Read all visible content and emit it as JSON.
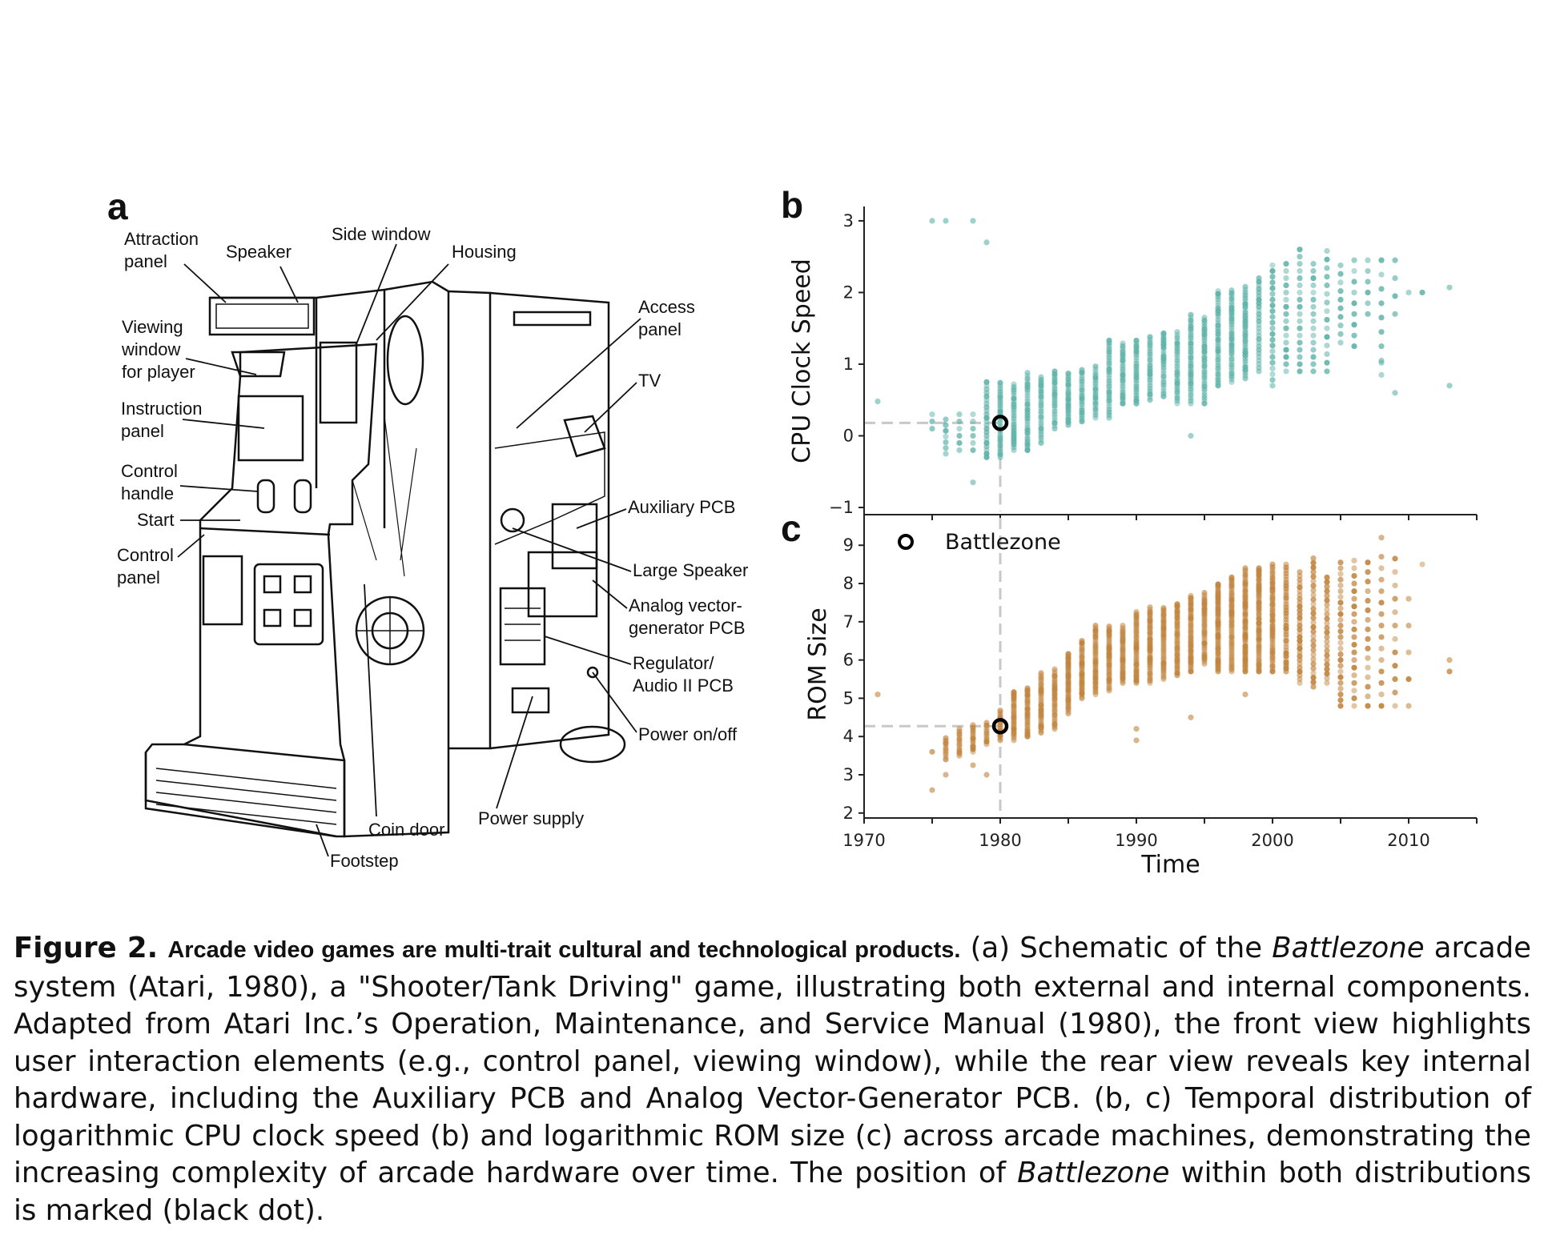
{
  "panel_a": {
    "label": "a",
    "callouts": {
      "attraction_panel": [
        "Attraction",
        "panel"
      ],
      "speaker": "Speaker",
      "side_window": "Side window",
      "housing": "Housing",
      "viewing_window": [
        "Viewing",
        "window",
        "for player"
      ],
      "instruction_panel": [
        "Instruction",
        "panel"
      ],
      "control_handle": [
        "Control",
        "handle"
      ],
      "start": "Start",
      "control_panel": [
        "Control",
        "panel"
      ],
      "access_panel": [
        "Access",
        "panel"
      ],
      "tv": "TV",
      "auxiliary_pcb": "Auxiliary PCB",
      "large_speaker": "Large Speaker",
      "analog_vector": [
        "Analog vector-",
        "generator PCB"
      ],
      "regulator": [
        "Regulator/",
        "Audio II PCB"
      ],
      "power_onoff": "Power on/off",
      "power_supply": "Power supply",
      "coin_door": "Coin door",
      "footstep": "Footstep"
    }
  },
  "chart_data": [
    {
      "panel": "b",
      "type": "scatter",
      "xlabel": "Time",
      "ylabel": "CPU Clock Speed",
      "xlim": [
        1970,
        2015
      ],
      "ylim": [
        -1.1,
        3.2
      ],
      "yticks": [
        "3",
        "2",
        "1",
        "0",
        "−1"
      ],
      "ytick_values": [
        3,
        2,
        1,
        0,
        -1
      ],
      "color": "#5fb3a9",
      "columns_note": "year, min, max, step",
      "columns": [
        [
          1975,
          0.1,
          0.3,
          0.1
        ],
        [
          1976,
          -0.25,
          0.3,
          0.08
        ],
        [
          1977,
          -0.2,
          0.3,
          0.1
        ],
        [
          1978,
          -0.2,
          0.3,
          0.1
        ],
        [
          1979,
          -0.3,
          0.75,
          0.05
        ],
        [
          1980,
          -0.3,
          0.75,
          0.04
        ],
        [
          1981,
          -0.2,
          0.75,
          0.04
        ],
        [
          1982,
          -0.2,
          0.9,
          0.04
        ],
        [
          1983,
          -0.1,
          0.85,
          0.04
        ],
        [
          1984,
          0.1,
          0.9,
          0.04
        ],
        [
          1985,
          0.15,
          0.9,
          0.04
        ],
        [
          1986,
          0.2,
          0.95,
          0.04
        ],
        [
          1987,
          0.25,
          1.0,
          0.04
        ],
        [
          1988,
          0.25,
          1.35,
          0.04
        ],
        [
          1989,
          0.45,
          1.3,
          0.04
        ],
        [
          1990,
          0.45,
          1.35,
          0.04
        ],
        [
          1991,
          0.5,
          1.4,
          0.04
        ],
        [
          1992,
          0.55,
          1.45,
          0.04
        ],
        [
          1993,
          0.45,
          1.45,
          0.04
        ],
        [
          1994,
          0.45,
          1.7,
          0.04
        ],
        [
          1995,
          0.45,
          1.65,
          0.04
        ],
        [
          1996,
          0.7,
          2.05,
          0.04
        ],
        [
          1997,
          0.75,
          2.05,
          0.04
        ],
        [
          1998,
          0.8,
          2.1,
          0.04
        ],
        [
          1999,
          0.9,
          2.2,
          0.05
        ],
        [
          2000,
          0.7,
          2.45,
          0.08
        ],
        [
          2001,
          0.9,
          2.45,
          0.1
        ],
        [
          2002,
          0.9,
          2.6,
          0.1
        ],
        [
          2003,
          0.9,
          2.45,
          0.1
        ],
        [
          2004,
          0.9,
          2.6,
          0.12
        ],
        [
          2005,
          1.3,
          2.45,
          0.12
        ],
        [
          2006,
          1.25,
          2.45,
          0.15
        ],
        [
          2007,
          1.7,
          2.45,
          0.15
        ],
        [
          2008,
          0.85,
          2.45,
          0.2
        ],
        [
          2009,
          1.7,
          2.45,
          0.25
        ],
        [
          2010,
          2.0,
          2.0,
          1
        ],
        [
          2011,
          2.0,
          2.0,
          1
        ]
      ],
      "outliers": [
        [
          1971,
          0.48
        ],
        [
          1975,
          3.0
        ],
        [
          1976,
          3.0
        ],
        [
          1978,
          3.0
        ],
        [
          1979,
          2.7
        ],
        [
          1978,
          -0.65
        ],
        [
          1994,
          0.0
        ],
        [
          2009,
          0.6
        ],
        [
          2013,
          0.7
        ],
        [
          2013,
          2.07
        ],
        [
          2008,
          1.02
        ]
      ],
      "highlight": {
        "name": "Battlezone",
        "x": 1980,
        "y": 0.18
      }
    },
    {
      "panel": "c",
      "type": "scatter",
      "xlabel": "Time",
      "ylabel": "ROM Size",
      "xlim": [
        1970,
        2015
      ],
      "ylim": [
        1.87,
        9.8
      ],
      "xticks": [
        "1970",
        "1980",
        "1990",
        "2000",
        "2010"
      ],
      "xtick_values": [
        1970,
        1980,
        1990,
        2000,
        2010
      ],
      "yticks": [
        "9",
        "8",
        "7",
        "6",
        "5",
        "4",
        "3",
        "2"
      ],
      "ytick_values": [
        9,
        8,
        7,
        6,
        5,
        4,
        3,
        2
      ],
      "color": "#c0843e",
      "columns": [
        [
          1975,
          3.6,
          3.6,
          1
        ],
        [
          1976,
          3.4,
          4.0,
          0.07
        ],
        [
          1977,
          3.5,
          4.2,
          0.07
        ],
        [
          1978,
          3.6,
          4.3,
          0.07
        ],
        [
          1979,
          3.8,
          4.4,
          0.07
        ],
        [
          1980,
          3.9,
          4.7,
          0.06
        ],
        [
          1981,
          3.9,
          5.2,
          0.06
        ],
        [
          1982,
          4.0,
          5.3,
          0.06
        ],
        [
          1983,
          4.1,
          5.7,
          0.06
        ],
        [
          1984,
          4.2,
          5.8,
          0.06
        ],
        [
          1985,
          4.6,
          6.2,
          0.06
        ],
        [
          1986,
          5.0,
          6.5,
          0.06
        ],
        [
          1987,
          5.1,
          6.9,
          0.06
        ],
        [
          1988,
          5.2,
          6.9,
          0.06
        ],
        [
          1989,
          5.4,
          6.9,
          0.06
        ],
        [
          1990,
          5.4,
          7.3,
          0.06
        ],
        [
          1991,
          5.4,
          7.4,
          0.06
        ],
        [
          1992,
          5.5,
          7.4,
          0.06
        ],
        [
          1993,
          5.6,
          7.5,
          0.06
        ],
        [
          1994,
          5.7,
          7.7,
          0.06
        ],
        [
          1995,
          5.9,
          7.8,
          0.06
        ],
        [
          1996,
          5.7,
          8.0,
          0.06
        ],
        [
          1997,
          5.7,
          8.2,
          0.06
        ],
        [
          1998,
          5.7,
          8.4,
          0.06
        ],
        [
          1999,
          5.7,
          8.4,
          0.06
        ],
        [
          2000,
          5.7,
          8.5,
          0.07
        ],
        [
          2001,
          5.7,
          8.5,
          0.08
        ],
        [
          2002,
          5.4,
          8.3,
          0.1
        ],
        [
          2003,
          5.3,
          8.7,
          0.12
        ],
        [
          2004,
          5.4,
          8.2,
          0.12
        ],
        [
          2005,
          4.8,
          8.6,
          0.15
        ],
        [
          2006,
          4.8,
          8.6,
          0.2
        ],
        [
          2007,
          4.8,
          8.7,
          0.25
        ],
        [
          2008,
          4.8,
          8.7,
          0.3
        ],
        [
          2009,
          4.8,
          8.7,
          0.35
        ],
        [
          2010,
          4.8,
          8.2,
          0.7
        ],
        [
          2011,
          8.5,
          8.5,
          1
        ],
        [
          2013,
          5.7,
          6.0,
          0.3
        ]
      ],
      "outliers": [
        [
          1971,
          5.1
        ],
        [
          1975,
          2.6
        ],
        [
          1976,
          3.0
        ],
        [
          1978,
          3.25
        ],
        [
          1979,
          3.0
        ],
        [
          1990,
          3.9
        ],
        [
          1990,
          4.2
        ],
        [
          1994,
          4.5
        ],
        [
          1998,
          5.1
        ],
        [
          2008,
          9.2
        ]
      ],
      "highlight": {
        "name": "Battlezone",
        "x": 1980,
        "y": 4.27
      },
      "legend": {
        "label": "Battlezone",
        "placement": "top-left"
      }
    }
  ],
  "caption": {
    "figure_label": "Figure 2.",
    "title": "Arcade video games are multi-trait cultural and technological products.",
    "text_1": " (a) Schematic of the ",
    "italic_1": "Battlezone",
    "text_2": " arcade system (Atari, 1980), a \"Shooter/Tank Driving\" game, illustrating both external and internal components. Adapted from Atari Inc.’s Operation, Maintenance, and Service Manual (1980), the front view highlights user interaction elements (e.g., control panel, viewing window), while the rear view reveals key internal hardware, including the Auxiliary PCB and Analog Vector-Generator PCB. (b, c) Temporal distribution of logarithmic CPU clock speed (b) and logarithmic ROM size (c) across arcade machines, demonstrating the increasing complexity of arcade hardware over time. The position of ",
    "italic_2": "Battlezone",
    "text_3": " within both distributions is marked (black dot)."
  }
}
